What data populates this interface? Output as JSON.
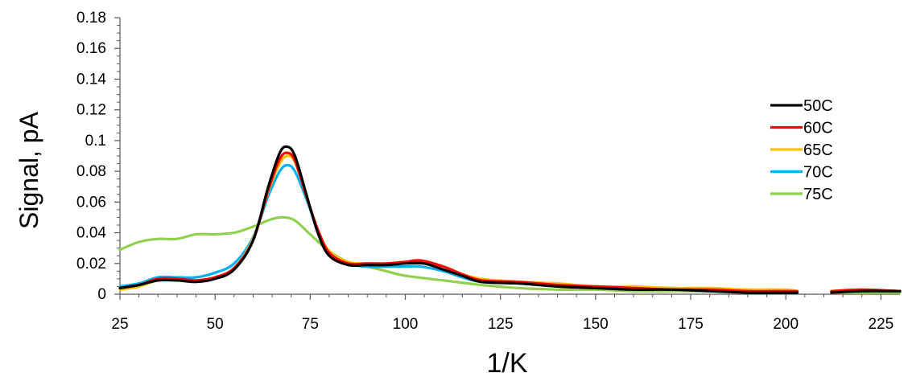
{
  "chart_data": {
    "type": "line",
    "title": "",
    "xlabel": "1/K",
    "ylabel": "Signal, pA",
    "xlim": [
      25,
      230
    ],
    "ylim": [
      0,
      0.18
    ],
    "x_ticks": [
      25,
      50,
      75,
      100,
      125,
      150,
      175,
      200,
      225
    ],
    "x_tick_labels": [
      "25",
      "50",
      "75",
      "100",
      "125",
      "150",
      "175",
      "200",
      "225"
    ],
    "y_ticks": [
      0,
      0.02,
      0.04,
      0.06,
      0.08,
      0.1,
      0.12,
      0.14,
      0.16,
      0.18
    ],
    "y_tick_labels": [
      "0",
      "0.02",
      "0.04",
      "0.06",
      "0.08",
      "0.1",
      "0.12",
      "0.14",
      "0.16",
      "0.18"
    ],
    "grid": false,
    "legend_position": "right",
    "series": [
      {
        "name": "50C",
        "color": "#000000",
        "points": [
          [
            25,
            0.004
          ],
          [
            30,
            0.006
          ],
          [
            35,
            0.009
          ],
          [
            40,
            0.009
          ],
          [
            45,
            0.008
          ],
          [
            50,
            0.01
          ],
          [
            55,
            0.016
          ],
          [
            60,
            0.035
          ],
          [
            64,
            0.07
          ],
          [
            67,
            0.092
          ],
          [
            69,
            0.096
          ],
          [
            71,
            0.09
          ],
          [
            74,
            0.065
          ],
          [
            77,
            0.04
          ],
          [
            80,
            0.025
          ],
          [
            85,
            0.019
          ],
          [
            90,
            0.019
          ],
          [
            95,
            0.019
          ],
          [
            100,
            0.02
          ],
          [
            105,
            0.02
          ],
          [
            110,
            0.016
          ],
          [
            115,
            0.012
          ],
          [
            120,
            0.008
          ],
          [
            130,
            0.007
          ],
          [
            140,
            0.005
          ],
          [
            150,
            0.004
          ],
          [
            160,
            0.003
          ],
          [
            170,
            0.003
          ],
          [
            180,
            0.002
          ],
          [
            190,
            0.001
          ],
          [
            200,
            0.001
          ],
          [
            203,
            0.001
          ],
          null,
          [
            212,
            0.001
          ],
          [
            220,
            0.002
          ],
          [
            230,
            0.002
          ]
        ]
      },
      {
        "name": "60C",
        "color": "#ff0000",
        "points": [
          [
            25,
            0.004
          ],
          [
            30,
            0.006
          ],
          [
            35,
            0.01
          ],
          [
            40,
            0.01
          ],
          [
            45,
            0.009
          ],
          [
            50,
            0.011
          ],
          [
            55,
            0.017
          ],
          [
            60,
            0.035
          ],
          [
            64,
            0.068
          ],
          [
            67,
            0.088
          ],
          [
            69,
            0.092
          ],
          [
            71,
            0.087
          ],
          [
            74,
            0.064
          ],
          [
            77,
            0.042
          ],
          [
            80,
            0.027
          ],
          [
            85,
            0.02
          ],
          [
            90,
            0.02
          ],
          [
            95,
            0.02
          ],
          [
            100,
            0.021
          ],
          [
            104,
            0.022
          ],
          [
            110,
            0.018
          ],
          [
            115,
            0.013
          ],
          [
            120,
            0.009
          ],
          [
            130,
            0.008
          ],
          [
            140,
            0.006
          ],
          [
            150,
            0.005
          ],
          [
            160,
            0.004
          ],
          [
            170,
            0.003
          ],
          [
            180,
            0.003
          ],
          [
            190,
            0.002
          ],
          [
            200,
            0.002
          ],
          [
            203,
            0.002
          ],
          null,
          [
            212,
            0.002
          ],
          [
            220,
            0.003
          ],
          [
            230,
            0.002
          ]
        ]
      },
      {
        "name": "65C",
        "color": "#ffc000",
        "points": [
          [
            25,
            0.003
          ],
          [
            30,
            0.005
          ],
          [
            35,
            0.009
          ],
          [
            40,
            0.009
          ],
          [
            45,
            0.009
          ],
          [
            50,
            0.011
          ],
          [
            55,
            0.017
          ],
          [
            60,
            0.036
          ],
          [
            64,
            0.067
          ],
          [
            67,
            0.085
          ],
          [
            69,
            0.09
          ],
          [
            71,
            0.086
          ],
          [
            74,
            0.064
          ],
          [
            77,
            0.042
          ],
          [
            80,
            0.028
          ],
          [
            85,
            0.021
          ],
          [
            90,
            0.02
          ],
          [
            95,
            0.02
          ],
          [
            100,
            0.021
          ],
          [
            104,
            0.021
          ],
          [
            110,
            0.018
          ],
          [
            115,
            0.013
          ],
          [
            120,
            0.01
          ],
          [
            130,
            0.008
          ],
          [
            140,
            0.007
          ],
          [
            150,
            0.005
          ],
          [
            160,
            0.005
          ],
          [
            170,
            0.004
          ],
          [
            180,
            0.004
          ],
          [
            190,
            0.003
          ],
          [
            200,
            0.003
          ],
          [
            203,
            0.002
          ],
          null,
          [
            212,
            0.002
          ],
          [
            220,
            0.003
          ],
          [
            230,
            0.002
          ]
        ]
      },
      {
        "name": "70C",
        "color": "#00b0f0",
        "points": [
          [
            25,
            0.005
          ],
          [
            30,
            0.007
          ],
          [
            35,
            0.011
          ],
          [
            40,
            0.011
          ],
          [
            45,
            0.011
          ],
          [
            50,
            0.014
          ],
          [
            55,
            0.02
          ],
          [
            60,
            0.037
          ],
          [
            64,
            0.064
          ],
          [
            67,
            0.08
          ],
          [
            69,
            0.084
          ],
          [
            71,
            0.08
          ],
          [
            74,
            0.062
          ],
          [
            77,
            0.042
          ],
          [
            80,
            0.028
          ],
          [
            85,
            0.02
          ],
          [
            90,
            0.018
          ],
          [
            95,
            0.018
          ],
          [
            100,
            0.018
          ],
          [
            104,
            0.018
          ],
          [
            110,
            0.015
          ],
          [
            115,
            0.011
          ],
          [
            120,
            0.008
          ],
          [
            130,
            0.007
          ],
          [
            140,
            0.006
          ],
          [
            150,
            0.005
          ],
          [
            160,
            0.004
          ],
          [
            170,
            0.004
          ],
          [
            180,
            0.003
          ],
          [
            190,
            0.003
          ],
          [
            200,
            0.002
          ],
          [
            203,
            0.002
          ],
          null,
          [
            212,
            0.002
          ],
          [
            220,
            0.002
          ],
          [
            230,
            0.002
          ]
        ]
      },
      {
        "name": "75C",
        "color": "#92d050",
        "points": [
          [
            25,
            0.029
          ],
          [
            30,
            0.034
          ],
          [
            35,
            0.036
          ],
          [
            40,
            0.036
          ],
          [
            45,
            0.039
          ],
          [
            50,
            0.039
          ],
          [
            55,
            0.04
          ],
          [
            60,
            0.044
          ],
          [
            65,
            0.049
          ],
          [
            68,
            0.05
          ],
          [
            71,
            0.048
          ],
          [
            75,
            0.039
          ],
          [
            80,
            0.028
          ],
          [
            85,
            0.021
          ],
          [
            90,
            0.018
          ],
          [
            95,
            0.015
          ],
          [
            100,
            0.012
          ],
          [
            110,
            0.009
          ],
          [
            120,
            0.006
          ],
          [
            130,
            0.004
          ],
          [
            140,
            0.003
          ],
          [
            150,
            0.003
          ],
          [
            160,
            0.002
          ],
          [
            170,
            0.002
          ],
          [
            180,
            0.002
          ],
          [
            190,
            0.002
          ],
          [
            200,
            0.002
          ],
          [
            203,
            0.001
          ],
          null,
          [
            212,
            0.001
          ],
          [
            220,
            0.001
          ],
          [
            230,
            0.001
          ]
        ]
      }
    ]
  }
}
